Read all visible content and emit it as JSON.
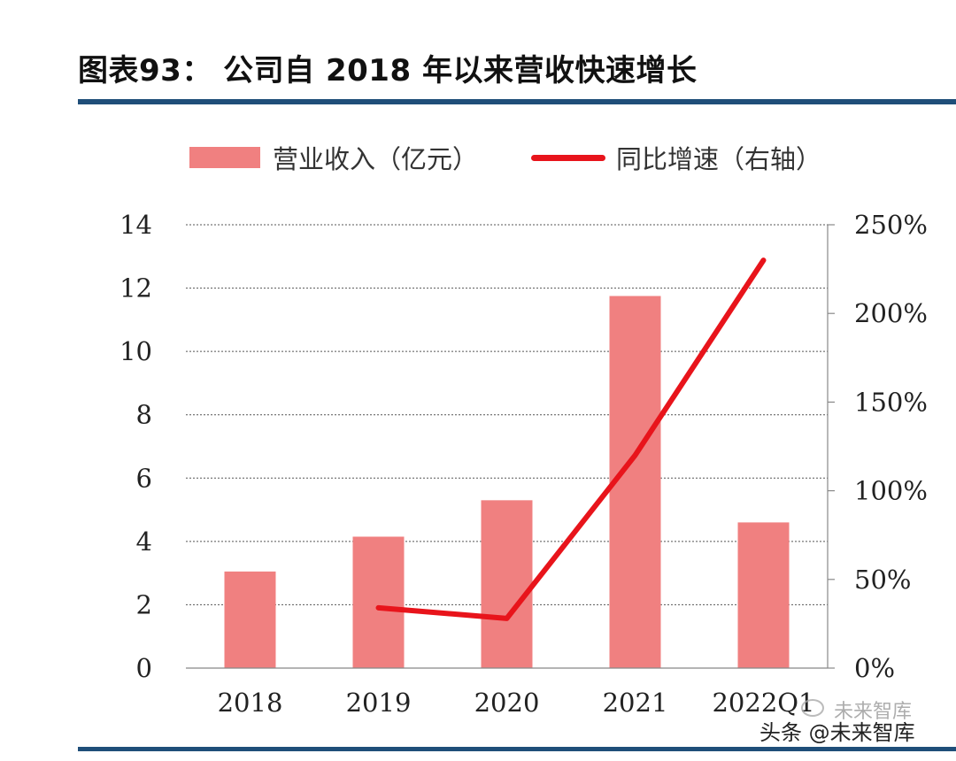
{
  "header": {
    "title": "图表93： 公司自 2018 年以来营收快速增长",
    "rule_color": "#1F4E79"
  },
  "legend": {
    "bar_label": "营业收入（亿元）",
    "line_label": "同比增速（右轴）"
  },
  "watermark": {
    "text": "头条 @未来智库",
    "faint_text": "未来智库"
  },
  "chart_data": {
    "type": "bar",
    "categories": [
      "2018",
      "2019",
      "2020",
      "2021",
      "2022Q1"
    ],
    "series": [
      {
        "name": "营业收入（亿元）",
        "type": "bar",
        "axis": "left",
        "values": [
          3.05,
          4.15,
          5.3,
          11.75,
          4.6
        ],
        "color": "#F08080"
      },
      {
        "name": "同比增速（右轴）",
        "type": "line",
        "axis": "right",
        "values": [
          null,
          0.34,
          0.28,
          1.2,
          2.3
        ],
        "color": "#E8141B"
      }
    ],
    "left_axis": {
      "min": 0,
      "max": 14,
      "ticks": [
        "0",
        "2",
        "4",
        "6",
        "8",
        "10",
        "12",
        "14"
      ]
    },
    "right_axis": {
      "min": 0,
      "max": 2.5,
      "ticks": [
        "0%",
        "50%",
        "100%",
        "150%",
        "200%",
        "250%"
      ]
    },
    "grid": "horizontal dashed",
    "legend_position": "top"
  }
}
